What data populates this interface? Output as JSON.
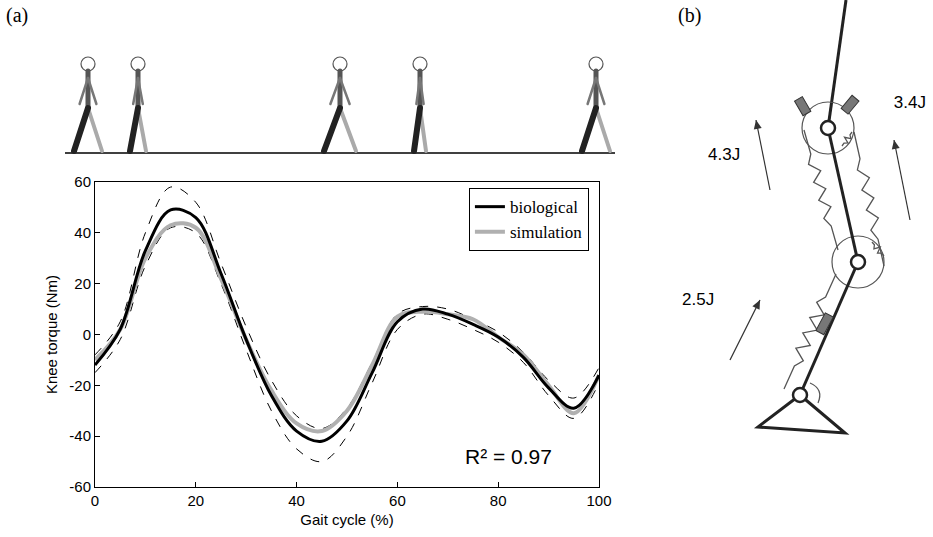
{
  "chart_data": {
    "type": "line",
    "panel_label": "(a)",
    "x_label": "Gait cycle (%)",
    "y_label": "Knee torque (Nm)",
    "x": [
      0,
      5,
      10,
      15,
      20,
      25,
      30,
      35,
      40,
      45,
      50,
      55,
      60,
      65,
      70,
      75,
      80,
      85,
      90,
      95,
      100
    ],
    "series": [
      {
        "name": "biological",
        "color": "#000000",
        "line_style": "solid",
        "values": [
          -12,
          2,
          33,
          49,
          46,
          24,
          -2,
          -24,
          -38,
          -42,
          -34,
          -15,
          5,
          10,
          8,
          4,
          -1,
          -9,
          -21,
          -29,
          -16
        ],
        "band_upper": [
          -8,
          5,
          40,
          58,
          52,
          28,
          3,
          -18,
          -32,
          -37,
          -29,
          -11,
          8,
          11,
          10,
          6,
          1,
          -7,
          -18,
          -25,
          -13
        ],
        "band_lower": [
          -15,
          -2,
          27,
          42,
          40,
          20,
          -6,
          -30,
          -45,
          -50,
          -40,
          -19,
          2,
          8,
          6,
          2,
          -3,
          -11,
          -24,
          -33,
          -19
        ]
      },
      {
        "name": "simulation",
        "color": "#b0b0b0",
        "line_style": "solid",
        "values": [
          -10,
          2,
          30,
          43,
          42,
          22,
          -2,
          -22,
          -35,
          -38,
          -30,
          -12,
          7,
          9,
          8,
          6,
          -1,
          -8,
          -20,
          -31,
          -16
        ]
      }
    ],
    "xlim": [
      0,
      100
    ],
    "xticks": [
      0,
      20,
      40,
      60,
      80,
      100
    ],
    "ylim": [
      -60,
      60
    ],
    "yticks": [
      -60,
      -40,
      -20,
      0,
      20,
      40,
      60
    ],
    "grid": false,
    "legend": "top right",
    "annotations": [
      {
        "text": "R² = 0.97",
        "x": 82,
        "y": -48
      }
    ]
  },
  "diagram": {
    "panel_label": "(b)",
    "energy_labels": [
      "4.3J",
      "3.4J",
      "2.5J"
    ]
  }
}
